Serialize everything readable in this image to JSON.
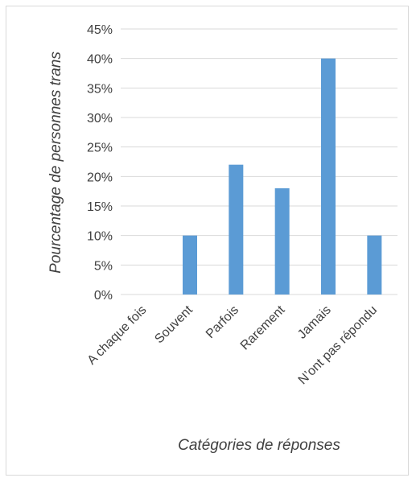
{
  "chart_data": {
    "type": "bar",
    "title": "",
    "xlabel": "Catégories de réponses",
    "ylabel": "Pourcentage de personnes trans",
    "categories": [
      "A chaque fois",
      "Souvent",
      "Parfois",
      "Rarement",
      "Jamais",
      "N’ont pas répondu"
    ],
    "values": [
      0,
      10,
      22,
      18,
      40,
      10
    ],
    "ylim": [
      0,
      45
    ],
    "yticks": [
      "0%",
      "5%",
      "10%",
      "15%",
      "20%",
      "25%",
      "30%",
      "35%",
      "40%",
      "45%"
    ],
    "grid": true,
    "bar_color": "#5b9bd5",
    "grid_color": "#d9d9d9"
  }
}
